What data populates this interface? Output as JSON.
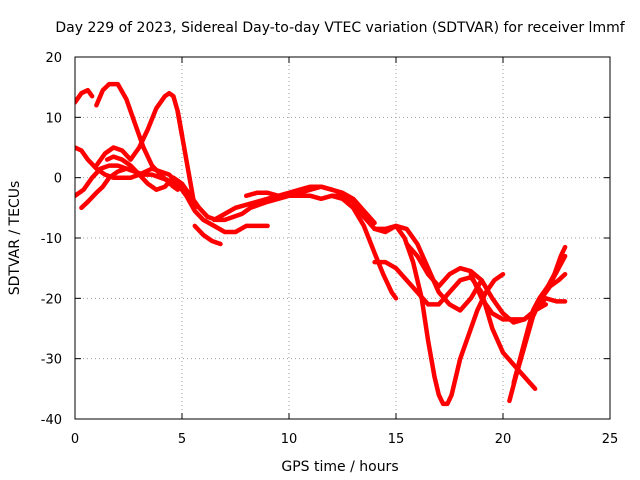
{
  "chart_data": {
    "type": "line",
    "title": "Day 229 of 2023, Sidereal Day-to-day VTEC variation (SDTVAR) for receiver lmmf",
    "xlabel": "GPS time / hours",
    "ylabel": "SDTVAR / TECUs",
    "xlim": [
      0,
      25
    ],
    "ylim": [
      -40,
      20
    ],
    "xticks": [
      0,
      5,
      10,
      15,
      20,
      25
    ],
    "yticks": [
      -40,
      -30,
      -20,
      -10,
      0,
      10,
      20
    ],
    "xtick_labels": [
      "0",
      "5",
      "10",
      "15",
      "20",
      "25"
    ],
    "ytick_labels": [
      "-40",
      "-30",
      "-20",
      "-10",
      "0",
      "10",
      "20"
    ],
    "grid": true,
    "legend": "none",
    "series_color": "#ff0000",
    "series": [
      {
        "name": "track-1",
        "x": [
          0,
          0.3,
          0.6,
          0.8
        ],
        "y": [
          12.5,
          14,
          14.5,
          13.5
        ]
      },
      {
        "name": "track-2",
        "x": [
          0,
          0.3,
          0.6,
          1.0,
          1.4,
          1.8,
          2.2,
          2.6,
          3.0,
          3.3,
          3.6,
          4.0,
          4.4,
          4.8,
          5.2,
          5.6,
          6.0,
          6.5,
          7.0,
          7.5,
          8.0,
          8.5,
          9.0
        ],
        "y": [
          5,
          4.5,
          3,
          1.5,
          0.5,
          0,
          0,
          0,
          0.5,
          1,
          1.5,
          1,
          0.5,
          -1,
          -3,
          -5.5,
          -7,
          -8,
          -9,
          -9,
          -8,
          -8,
          -8
        ]
      },
      {
        "name": "track-3",
        "x": [
          0,
          0.4,
          0.8,
          1.2,
          1.6,
          2.0,
          2.4,
          2.8,
          3.2,
          3.6,
          4.0,
          4.4,
          4.8,
          5.0
        ],
        "y": [
          -3,
          -2,
          0,
          1.5,
          2,
          2,
          1.5,
          1,
          0.5,
          0.5,
          0,
          -0.5,
          -1.5,
          -2
        ]
      },
      {
        "name": "track-4",
        "x": [
          1.0,
          1.3,
          1.6,
          2.0,
          2.4,
          2.8,
          3.2,
          3.6,
          4.0,
          4.3,
          4.6,
          4.8
        ],
        "y": [
          12,
          14.5,
          15.5,
          15.5,
          13,
          9,
          5,
          2,
          0.5,
          -0.5,
          -1.5,
          -2
        ]
      },
      {
        "name": "track-5",
        "x": [
          0.3,
          0.6,
          1.0,
          1.3,
          1.6,
          2.0,
          2.4,
          2.8,
          3.0
        ],
        "y": [
          -5,
          -4,
          -2.5,
          -1.5,
          0,
          1,
          1.5,
          1,
          0.5
        ]
      },
      {
        "name": "track-6",
        "x": [
          1.5,
          1.8,
          2.2,
          2.6,
          3.0,
          3.4,
          3.8,
          4.2,
          4.6,
          5.0,
          5.4,
          5.8,
          6.2,
          6.6,
          7.0,
          7.4,
          7.8,
          8.2,
          8.6,
          9.0,
          9.5,
          10.0,
          10.5,
          11.0,
          11.5,
          12.0
        ],
        "y": [
          3,
          3.5,
          3,
          2,
          0.5,
          -1,
          -2,
          -1.5,
          0,
          -1,
          -3,
          -5,
          -6.5,
          -7,
          -7,
          -6.5,
          -6,
          -5,
          -4.5,
          -4,
          -3.5,
          -3,
          -2.5,
          -2,
          -1.5,
          -2
        ]
      },
      {
        "name": "track-7",
        "x": [
          1.0,
          1.4,
          1.8,
          2.2,
          2.6,
          3.0,
          3.4,
          3.8,
          4.2,
          4.4,
          4.6,
          4.8,
          5.0
        ],
        "y": [
          2,
          4,
          5,
          4.5,
          3,
          5,
          8,
          11.5,
          13.5,
          14,
          13.5,
          11,
          7
        ]
      },
      {
        "name": "track-8",
        "x": [
          4.8,
          5.0,
          5.2,
          5.4,
          5.6
        ],
        "y": [
          11,
          7,
          3,
          -1,
          -5
        ]
      },
      {
        "name": "track-9",
        "x": [
          5.6,
          6.0,
          6.4,
          6.8
        ],
        "y": [
          -8,
          -9.5,
          -10.5,
          -11
        ]
      },
      {
        "name": "track-10",
        "x": [
          6.5,
          7.0,
          7.5,
          8.0,
          8.5,
          9.0,
          9.5,
          10.0,
          10.5,
          11.0,
          11.5,
          12.0,
          12.5,
          13.0,
          13.5,
          14.0
        ],
        "y": [
          -7,
          -6,
          -5,
          -4.5,
          -4,
          -3.5,
          -3,
          -2.5,
          -2,
          -1.5,
          -1.5,
          -2,
          -2.5,
          -3.5,
          -5.5,
          -7.5
        ]
      },
      {
        "name": "track-11",
        "x": [
          8.0,
          8.5,
          9.0,
          9.5,
          10.0,
          10.5,
          11.0,
          11.5,
          12.0,
          12.5,
          13.0,
          13.5,
          14.0,
          14.5,
          15.0,
          15.5,
          16.0,
          16.5,
          17.0,
          17.5,
          18.0,
          18.5,
          19.0
        ],
        "y": [
          -3,
          -2.5,
          -2.5,
          -3,
          -3,
          -3,
          -3,
          -3.5,
          -3,
          -3,
          -4,
          -6.5,
          -8.5,
          -8.5,
          -8,
          -8.5,
          -11,
          -15,
          -19,
          -21,
          -22,
          -20,
          -17
        ]
      },
      {
        "name": "track-12",
        "x": [
          12.0,
          12.5,
          13.0,
          13.5,
          14.0,
          14.4,
          14.8,
          15.0
        ],
        "y": [
          -3,
          -3.5,
          -5,
          -8,
          -12.5,
          -16,
          -19,
          -20
        ]
      },
      {
        "name": "track-13",
        "x": [
          13.5,
          14.0,
          14.5,
          15.0,
          15.4,
          15.8,
          16.2,
          16.5,
          16.8,
          17.0,
          17.2,
          17.4,
          17.6,
          17.8,
          18.0,
          18.4,
          18.8,
          19.2,
          19.6,
          20.0
        ],
        "y": [
          -6,
          -8.5,
          -9,
          -8,
          -10,
          -14,
          -20,
          -27,
          -33,
          -36,
          -37.5,
          -37.5,
          -36,
          -33,
          -30,
          -26,
          -22,
          -19,
          -17,
          -16
        ]
      },
      {
        "name": "track-14",
        "x": [
          14.0,
          14.5,
          15.0,
          15.5,
          16.0,
          16.5,
          17.0,
          17.5,
          18.0,
          18.5,
          19.0,
          19.5,
          20.0,
          20.5,
          21.0,
          21.5
        ],
        "y": [
          -14,
          -14,
          -15,
          -17,
          -19,
          -21,
          -21,
          -19,
          -17,
          -16.5,
          -19,
          -25,
          -29,
          -31,
          -33,
          -35
        ]
      },
      {
        "name": "track-15",
        "x": [
          15.5,
          16.0,
          16.5,
          17.0,
          17.5,
          18.0,
          18.5,
          19.0,
          19.5,
          20.0,
          20.5,
          21.0,
          21.5,
          22.0,
          22.5,
          22.9
        ],
        "y": [
          -11,
          -13,
          -16,
          -18,
          -16,
          -15,
          -15.5,
          -17,
          -20,
          -22.5,
          -24,
          -23.5,
          -22,
          -20,
          -20.5,
          -20.5
        ]
      },
      {
        "name": "track-16",
        "x": [
          18.5,
          19.0,
          19.5,
          20.0,
          20.5,
          21.0,
          21.5,
          22.0
        ],
        "y": [
          -16,
          -20,
          -22.5,
          -23.5,
          -23.5,
          -23.5,
          -22,
          -21
        ]
      },
      {
        "name": "track-17",
        "x": [
          20.3,
          20.6,
          21.0,
          21.4,
          21.8,
          22.2,
          22.6,
          22.9
        ],
        "y": [
          -37,
          -33,
          -28,
          -23,
          -20,
          -18,
          -17,
          -16
        ]
      },
      {
        "name": "track-18",
        "x": [
          20.5,
          20.8,
          21.1,
          21.4,
          21.7,
          22.0,
          22.3,
          22.6,
          22.9
        ],
        "y": [
          -34,
          -30,
          -26,
          -22,
          -20,
          -18.5,
          -17,
          -15,
          -13
        ]
      },
      {
        "name": "track-19",
        "x": [
          21.5,
          21.8,
          22.1,
          22.4,
          22.7,
          22.9
        ],
        "y": [
          -22,
          -20,
          -18,
          -16,
          -13,
          -11.5
        ]
      }
    ]
  }
}
